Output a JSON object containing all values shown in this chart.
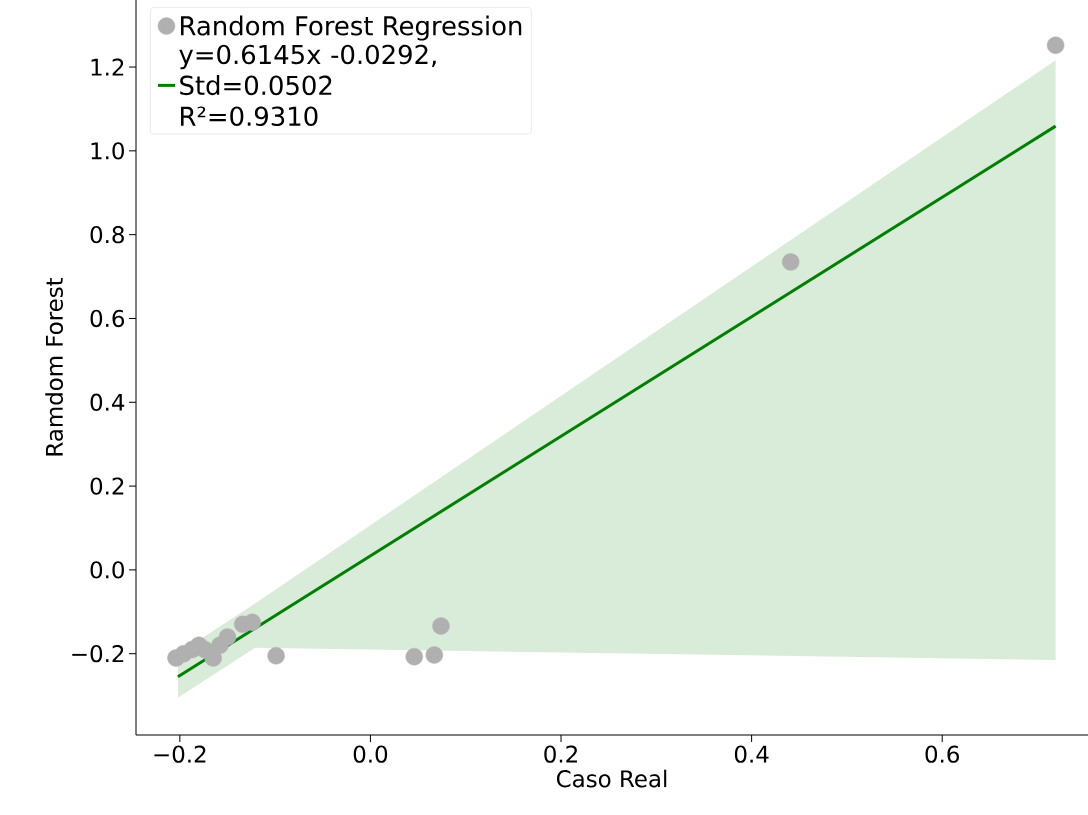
{
  "chart_data": {
    "type": "scatter",
    "xlabel": "Caso Real",
    "ylabel": "Ramdom Forest",
    "xlim": [
      -0.246,
      0.753
    ],
    "ylim": [
      -0.394,
      1.36
    ],
    "xticks": [
      {
        "value": -0.2,
        "label": "−0.2"
      },
      {
        "value": 0.0,
        "label": "0.0"
      },
      {
        "value": 0.2,
        "label": "0.2"
      },
      {
        "value": 0.4,
        "label": "0.4"
      },
      {
        "value": 0.6,
        "label": "0.6"
      }
    ],
    "yticks": [
      {
        "value": -0.2,
        "label": "−0.2"
      },
      {
        "value": 0.0,
        "label": "0.0"
      },
      {
        "value": 0.2,
        "label": "0.2"
      },
      {
        "value": 0.4,
        "label": "0.4"
      },
      {
        "value": 0.6,
        "label": "0.6"
      },
      {
        "value": 0.8,
        "label": "0.8"
      },
      {
        "value": 1.0,
        "label": "1.0"
      },
      {
        "value": 1.2,
        "label": "1.2"
      }
    ],
    "legend": "top left",
    "series": [
      {
        "type": "scatter",
        "name": "Random Forest Regression",
        "color": "#b0b0b0",
        "x": [
          -0.204,
          -0.196,
          -0.187,
          -0.18,
          -0.174,
          -0.165,
          -0.158,
          -0.15,
          -0.134,
          -0.124,
          -0.099,
          0.046,
          0.067,
          0.074,
          0.441,
          0.719
        ],
        "values": [
          -0.21,
          -0.2,
          -0.19,
          -0.18,
          -0.19,
          -0.21,
          -0.18,
          -0.16,
          -0.13,
          -0.125,
          -0.205,
          -0.207,
          -0.203,
          -0.134,
          0.735,
          1.252
        ]
      },
      {
        "type": "line",
        "name": "y=0.6145x -0.0292, Std=0.0502 R²=0.9310",
        "color": "#008000",
        "x": [
          -0.202,
          -0.121,
          0.719
        ],
        "values": [
          -0.255,
          -0.139,
          1.059
        ],
        "lower": [
          -0.305,
          -0.186,
          -0.215
        ],
        "upper": [
          -0.2,
          -0.08,
          1.216
        ]
      }
    ]
  }
}
